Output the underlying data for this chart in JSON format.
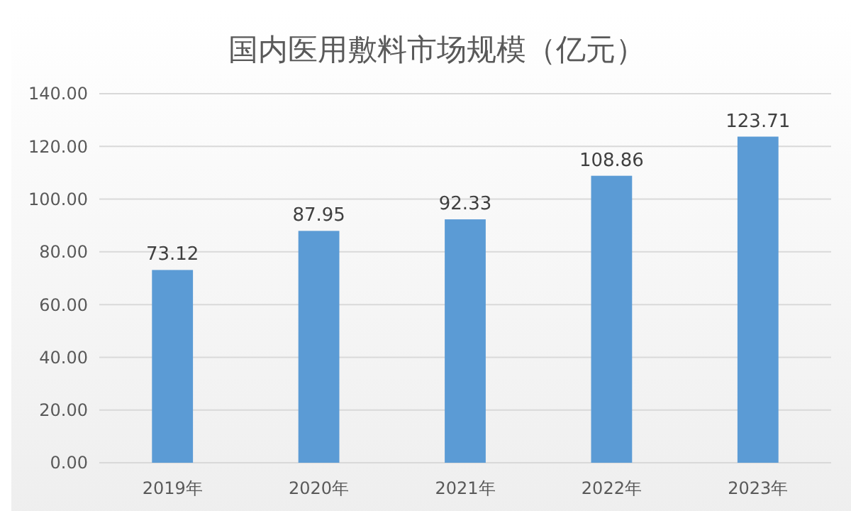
{
  "chart_data": {
    "type": "bar",
    "title": "国内医用敷料市场规模（亿元）",
    "categories": [
      "2019年",
      "2020年",
      "2021年",
      "2022年",
      "2023年"
    ],
    "values": [
      73.12,
      87.95,
      92.33,
      108.86,
      123.71
    ],
    "value_labels": [
      "73.12",
      "87.95",
      "92.33",
      "108.86",
      "123.71"
    ],
    "color": "#5b9bd5",
    "ylim": [
      0,
      140
    ],
    "yticks": [
      {
        "value": 0,
        "label": "0.00"
      },
      {
        "value": 20,
        "label": "20.00"
      },
      {
        "value": 40,
        "label": "40.00"
      },
      {
        "value": 60,
        "label": "60.00"
      },
      {
        "value": 80,
        "label": "80.00"
      },
      {
        "value": 100,
        "label": "100.00"
      },
      {
        "value": 120,
        "label": "120.00"
      },
      {
        "value": 140,
        "label": "140.00"
      }
    ],
    "grid": "y"
  }
}
